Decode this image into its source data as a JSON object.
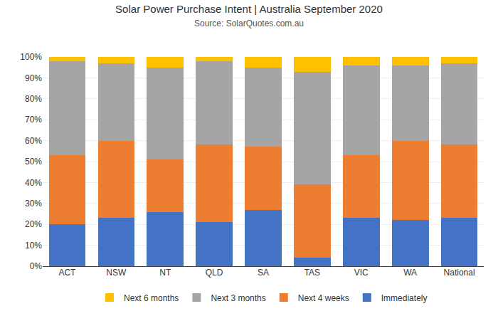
{
  "chart_data": {
    "type": "bar",
    "stacked": true,
    "title": "Solar Power Purchase Intent | Australia September 2020",
    "subtitle": "Source: SolarQuotes.com.au",
    "categories": [
      "ACT",
      "NSW",
      "NT",
      "QLD",
      "SA",
      "TAS",
      "VIC",
      "WA",
      "National"
    ],
    "series": [
      {
        "name": "Immediately",
        "color": "#4472C4",
        "values": [
          20,
          23,
          26,
          21,
          27,
          4,
          23,
          22,
          23
        ]
      },
      {
        "name": "Next 4 weeks",
        "color": "#ED7D31",
        "values": [
          33,
          37,
          25,
          37,
          30,
          35,
          30,
          38,
          35
        ]
      },
      {
        "name": "Next 3 months",
        "color": "#A5A5A5",
        "values": [
          45,
          37,
          44,
          40,
          38,
          54,
          43,
          36,
          39
        ]
      },
      {
        "name": "Next 6 months",
        "color": "#FFC000",
        "values": [
          2,
          3,
          5,
          2,
          5,
          7,
          4,
          4,
          3
        ]
      }
    ],
    "ylim": [
      0,
      100
    ],
    "yticks": [
      {
        "value": 0,
        "label": "0%"
      },
      {
        "value": 10,
        "label": "10%"
      },
      {
        "value": 20,
        "label": "20%"
      },
      {
        "value": 30,
        "label": "30%"
      },
      {
        "value": 40,
        "label": "40%"
      },
      {
        "value": 50,
        "label": "50%"
      },
      {
        "value": 60,
        "label": "60%"
      },
      {
        "value": 70,
        "label": "70%"
      },
      {
        "value": 80,
        "label": "80%"
      },
      {
        "value": 90,
        "label": "90%"
      },
      {
        "value": 100,
        "label": "100%"
      }
    ],
    "grid": true,
    "legend": "bottom"
  }
}
